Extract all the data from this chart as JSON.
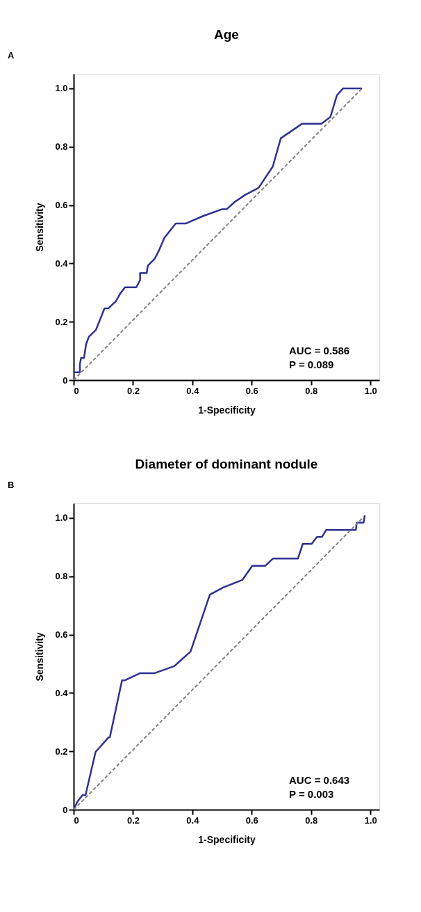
{
  "chart_data": [
    {
      "type": "line",
      "title": "Age",
      "xlabel": "1-Specificity",
      "ylabel": "Sensitivity",
      "xlim": [
        0,
        1.03
      ],
      "ylim": [
        0,
        1.05
      ],
      "xticks": [
        0,
        0.2,
        0.4,
        0.6,
        0.8,
        {
          "value": 1,
          "label": "1.0"
        }
      ],
      "yticks": [
        0,
        0.2,
        0.4,
        0.6,
        0.8,
        {
          "value": 1,
          "label": "1.0"
        }
      ],
      "grid": false,
      "annotations": [
        "A",
        "AUC = 0.586",
        "P = 0.089"
      ],
      "series": [
        {
          "color": "#2e3192",
          "line_style": "solid",
          "x": [
            0,
            0,
            0.021,
            0.021,
            0.025,
            0.035,
            0.042,
            0.051,
            0.075,
            0.104,
            0.117,
            0.142,
            0.158,
            0.173,
            0.211,
            0.224,
            0.224,
            0.246,
            0.25,
            0.273,
            0.286,
            0.306,
            0.344,
            0.379,
            0.435,
            0.501,
            0.516,
            0.543,
            0.578,
            0.623,
            0.671,
            0.698,
            0.77,
            0.835,
            0.865,
            0.887,
            0.908,
            0.972
          ],
          "values": [
            0,
            0.027,
            0.027,
            0.054,
            0.076,
            0.076,
            0.123,
            0.148,
            0.172,
            0.246,
            0.246,
            0.27,
            0.298,
            0.318,
            0.318,
            0.343,
            0.367,
            0.367,
            0.392,
            0.416,
            0.441,
            0.488,
            0.537,
            0.537,
            0.562,
            0.586,
            0.586,
            0.611,
            0.635,
            0.659,
            0.732,
            0.829,
            0.879,
            0.879,
            0.902,
            0.976,
            1.0,
            1.0
          ]
        },
        {
          "color": "#808080",
          "line_style": "dashed",
          "x": [
            0,
            0.972
          ],
          "values": [
            0,
            1.0
          ]
        }
      ]
    },
    {
      "type": "line",
      "title": "Diameter of dominant nodule",
      "xlabel": "1-Specificity",
      "ylabel": "Sensitivity",
      "xlim": [
        0,
        1.03
      ],
      "ylim": [
        0,
        1.05
      ],
      "xticks": [
        0,
        0.2,
        0.4,
        0.6,
        0.8,
        {
          "value": 1,
          "label": "1.0"
        }
      ],
      "yticks": [
        0,
        0.2,
        0.4,
        0.6,
        0.8,
        {
          "value": 1,
          "label": "1.0"
        }
      ],
      "grid": false,
      "annotations": [
        "B",
        "AUC = 0.643",
        "P = 0.003"
      ],
      "series": [
        {
          "color": "#2e3192",
          "line_style": "solid",
          "x": [
            0,
            0.012,
            0.03,
            0.04,
            0.051,
            0.074,
            0.118,
            0.122,
            0.163,
            0.172,
            0.224,
            0.273,
            0.339,
            0.394,
            0.459,
            0.505,
            0.568,
            0.602,
            0.646,
            0.672,
            0.756,
            0.772,
            0.802,
            0.82,
            0.837,
            0.851,
            0.951,
            0.954,
            0.977,
            0.981
          ],
          "values": [
            0,
            0.026,
            0.05,
            0.05,
            0.098,
            0.198,
            0.248,
            0.248,
            0.443,
            0.443,
            0.468,
            0.468,
            0.492,
            0.542,
            0.737,
            0.762,
            0.787,
            0.836,
            0.836,
            0.861,
            0.861,
            0.911,
            0.911,
            0.935,
            0.935,
            0.959,
            0.959,
            0.984,
            0.984,
            1.009
          ]
        },
        {
          "color": "#808080",
          "line_style": "dashed",
          "x": [
            0,
            0.974
          ],
          "values": [
            0,
            1.0
          ]
        }
      ]
    }
  ]
}
